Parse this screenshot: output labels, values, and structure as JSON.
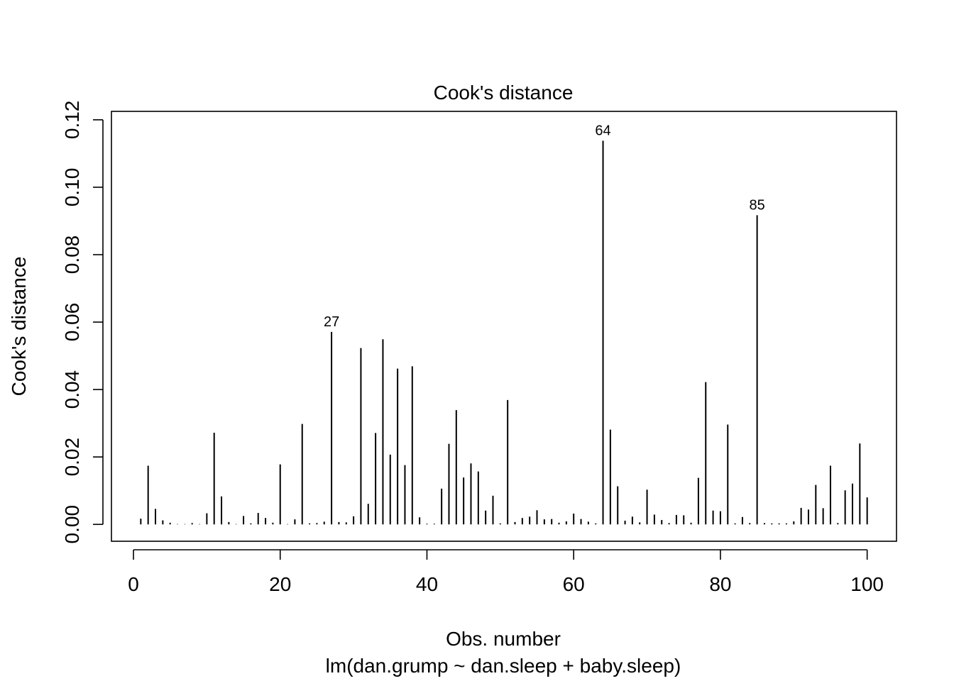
{
  "chart_data": {
    "type": "bar",
    "title": "Cook's distance",
    "xlabel": "Obs. number",
    "subtitle": "lm(dan.grump ~ dan.sleep + baby.sleep)",
    "ylabel": "Cook's distance",
    "xlim": [
      -3,
      104
    ],
    "ylim": [
      -0.005,
      0.1225
    ],
    "x_ticks": [
      "0",
      "20",
      "40",
      "60",
      "80",
      "100"
    ],
    "y_ticks": [
      "0.00",
      "0.02",
      "0.04",
      "0.06",
      "0.08",
      "0.10",
      "0.12"
    ],
    "grid": false,
    "x": [
      1,
      2,
      3,
      4,
      5,
      6,
      7,
      8,
      9,
      10,
      11,
      12,
      13,
      14,
      15,
      16,
      17,
      18,
      19,
      20,
      21,
      22,
      23,
      24,
      25,
      26,
      27,
      28,
      29,
      30,
      31,
      32,
      33,
      34,
      35,
      36,
      37,
      38,
      39,
      40,
      41,
      42,
      43,
      44,
      45,
      46,
      47,
      48,
      49,
      50,
      51,
      52,
      53,
      54,
      55,
      56,
      57,
      58,
      59,
      60,
      61,
      62,
      63,
      64,
      65,
      66,
      67,
      68,
      69,
      70,
      71,
      72,
      73,
      74,
      75,
      76,
      77,
      78,
      79,
      80,
      81,
      82,
      83,
      84,
      85,
      86,
      87,
      88,
      89,
      90,
      91,
      92,
      93,
      94,
      95,
      96,
      97,
      98,
      99,
      100
    ],
    "values": [
      0.0017,
      0.0174,
      0.0046,
      0.0012,
      0.0005,
      0.0001,
      0.0001,
      0.0004,
      0.0001,
      0.0033,
      0.0272,
      0.0083,
      0.0007,
      0.0001,
      0.0025,
      0.0003,
      0.0034,
      0.0019,
      0.0005,
      0.0178,
      0.0001,
      0.0015,
      0.0298,
      0.0003,
      0.0004,
      0.0008,
      0.0571,
      0.0007,
      0.0006,
      0.0024,
      0.0523,
      0.0061,
      0.0271,
      0.0549,
      0.0207,
      0.0462,
      0.0176,
      0.0469,
      0.0021,
      0.0002,
      0.0002,
      0.0106,
      0.0239,
      0.0339,
      0.0139,
      0.0181,
      0.0157,
      0.0041,
      0.0085,
      0.0003,
      0.0369,
      0.0007,
      0.0019,
      0.0023,
      0.0042,
      0.0015,
      0.0016,
      0.0005,
      0.0009,
      0.0032,
      0.0016,
      0.0008,
      0.0003,
      0.1138,
      0.0281,
      0.0113,
      0.0011,
      0.0023,
      0.0006,
      0.0103,
      0.0029,
      0.0013,
      0.0004,
      0.0028,
      0.0027,
      0.0005,
      0.0138,
      0.0422,
      0.0041,
      0.0039,
      0.0296,
      0.0003,
      0.0022,
      0.0004,
      0.0917,
      0.0004,
      0.0003,
      0.0003,
      0.0003,
      0.0009,
      0.0049,
      0.0044,
      0.0117,
      0.0048,
      0.0174,
      0.0004,
      0.0101,
      0.0121,
      0.024,
      0.008
    ],
    "point_labels": [
      {
        "x": 27,
        "label": "27"
      },
      {
        "x": 64,
        "label": "64"
      },
      {
        "x": 85,
        "label": "85"
      }
    ]
  }
}
